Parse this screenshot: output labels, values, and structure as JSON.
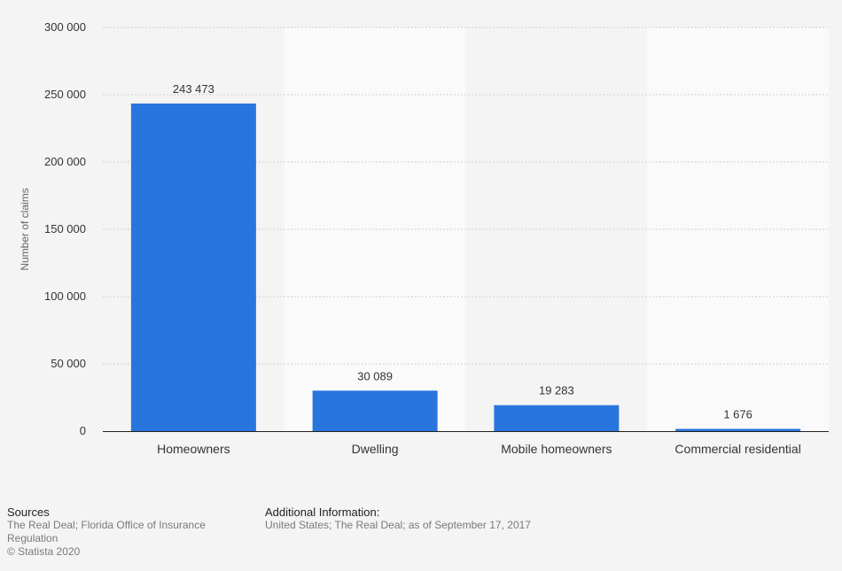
{
  "chart_data": {
    "type": "bar",
    "title": "",
    "xlabel": "",
    "ylabel": "Number of claims",
    "categories": [
      "Homeowners",
      "Dwelling",
      "Mobile homeowners",
      "Commercial residential"
    ],
    "values": [
      243473,
      30089,
      19283,
      1676
    ],
    "value_labels": [
      "243 473",
      "30 089",
      "19 283",
      "1 676"
    ],
    "ylim": [
      0,
      300000
    ],
    "yticks": [
      0,
      50000,
      100000,
      150000,
      200000,
      250000,
      300000
    ],
    "ytick_labels": [
      "0",
      "50 000",
      "100 000",
      "150 000",
      "200 000",
      "250 000",
      "300 000"
    ],
    "grid": true,
    "legend": "none",
    "colors": {
      "bar": "#2876dd",
      "band_light": "#fafafa",
      "band_dark": "#f4f4f4",
      "grid": "#cfcfcf",
      "axis": "#222222",
      "text": "#333333"
    }
  },
  "footer": {
    "sources_heading": "Sources",
    "sources_line1": "The Real Deal; Florida Office of Insurance",
    "sources_line2": "Regulation",
    "copyright": "© Statista 2020",
    "additional_heading": "Additional Information:",
    "additional_text": "United States; The Real Deal; as of September 17, 2017"
  }
}
